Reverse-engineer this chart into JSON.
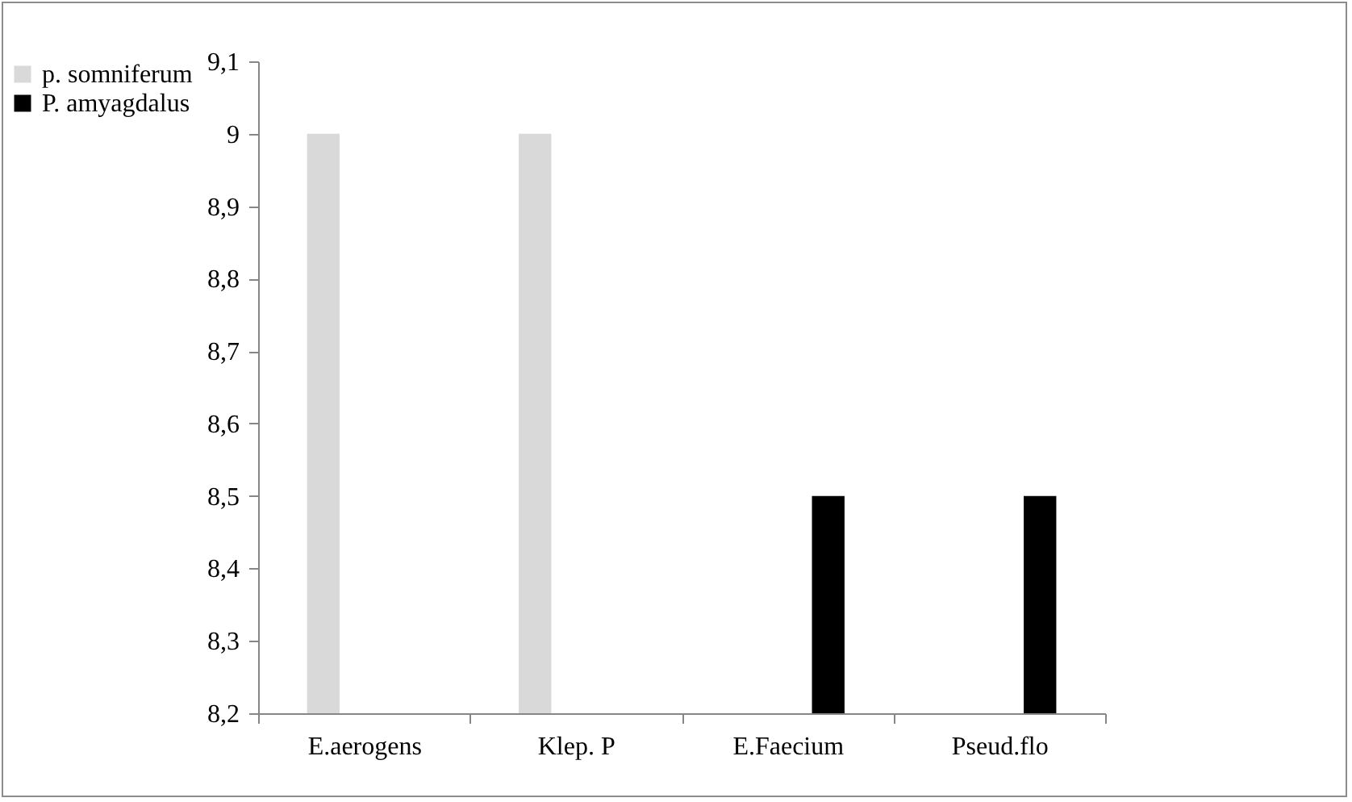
{
  "chart_data": {
    "type": "bar",
    "categories": [
      "E.aerogens",
      "Klep. P",
      "E.Faecium",
      "Pseud.flo"
    ],
    "series": [
      {
        "name": "p. somniferum",
        "color": "#d9d9d9",
        "values": [
          9,
          9,
          null,
          null
        ]
      },
      {
        "name": "P. amyagdalus",
        "color": "#000000",
        "values": [
          null,
          null,
          8.5,
          8.5
        ]
      }
    ],
    "ylim": [
      8.2,
      9.1
    ],
    "yticks": [
      {
        "value": 8.2,
        "label": "8,2"
      },
      {
        "value": 8.3,
        "label": "8,3"
      },
      {
        "value": 8.4,
        "label": "8,4"
      },
      {
        "value": 8.5,
        "label": "8,5"
      },
      {
        "value": 8.6,
        "label": "8,6"
      },
      {
        "value": 8.7,
        "label": "8,7"
      },
      {
        "value": 8.8,
        "label": "8,8"
      },
      {
        "value": 8.9,
        "label": "8,9"
      },
      {
        "value": 9,
        "label": "9"
      },
      {
        "value": 9.1,
        "label": "9,1"
      }
    ],
    "grid": false,
    "legend": "left"
  }
}
